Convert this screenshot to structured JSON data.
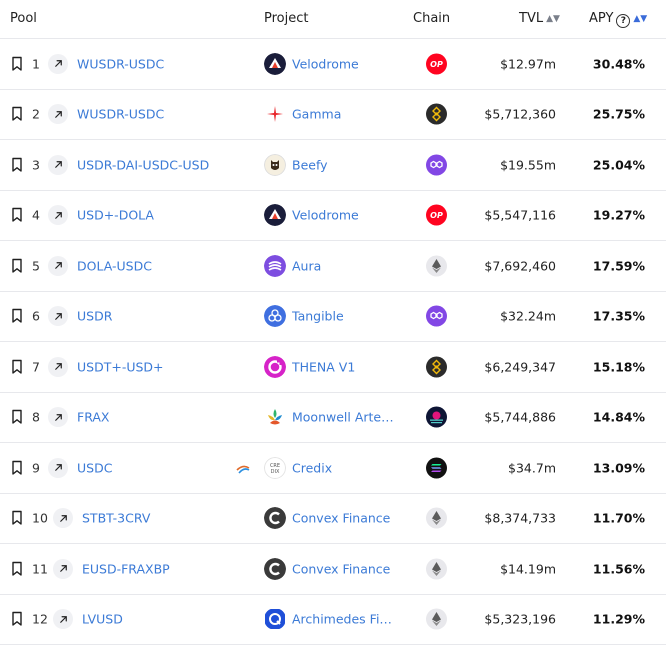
{
  "header": {
    "pool": "Pool",
    "project": "Project",
    "chain": "Chain",
    "tvl": "TVL",
    "apy": "APY",
    "help": "?"
  },
  "rows": [
    {
      "rank": "1",
      "pool": "WUSDR-USDC",
      "project": "Velodrome",
      "project_icon": "velodrome-logo-icon",
      "chain_icon": "optimism-chain-icon",
      "tvl": "$12.97m",
      "apy": "30.48%"
    },
    {
      "rank": "2",
      "pool": "WUSDR-USDC",
      "project": "Gamma",
      "project_icon": "gamma-logo-icon",
      "chain_icon": "bsc-chain-icon",
      "tvl": "$5,712,360",
      "apy": "25.75%"
    },
    {
      "rank": "3",
      "pool": "USDR-DAI-USDC-USD",
      "project": "Beefy",
      "project_icon": "beefy-logo-icon",
      "chain_icon": "polygon-chain-icon",
      "tvl": "$19.55m",
      "apy": "25.04%"
    },
    {
      "rank": "4",
      "pool": "USD+-DOLA",
      "project": "Velodrome",
      "project_icon": "velodrome-logo-icon",
      "chain_icon": "optimism-chain-icon",
      "tvl": "$5,547,116",
      "apy": "19.27%"
    },
    {
      "rank": "5",
      "pool": "DOLA-USDC",
      "project": "Aura",
      "project_icon": "aura-logo-icon",
      "chain_icon": "ethereum-chain-icon",
      "tvl": "$7,692,460",
      "apy": "17.59%"
    },
    {
      "rank": "6",
      "pool": "USDR",
      "project": "Tangible",
      "project_icon": "tangible-logo-icon",
      "chain_icon": "polygon-chain-icon",
      "tvl": "$32.24m",
      "apy": "17.35%"
    },
    {
      "rank": "7",
      "pool": "USDT+-USD+",
      "project": "THENA V1",
      "project_icon": "thena-logo-icon",
      "chain_icon": "bsc-chain-icon",
      "tvl": "$6,249,347",
      "apy": "15.18%"
    },
    {
      "rank": "8",
      "pool": "FRAX",
      "project": "Moonwell Arte…",
      "project_icon": "moonwell-logo-icon",
      "chain_icon": "moonbeam-chain-icon",
      "tvl": "$5,744,886",
      "apy": "14.84%"
    },
    {
      "rank": "9",
      "pool": "USDC",
      "project": "Credix",
      "project_icon": "credix-logo-icon",
      "chain_icon": "solana-chain-icon",
      "tvl": "$34.7m",
      "apy": "13.09%",
      "rwa": true
    },
    {
      "rank": "10",
      "pool": "STBT-3CRV",
      "project": "Convex Finance",
      "project_icon": "convex-logo-icon",
      "chain_icon": "ethereum-chain-icon",
      "tvl": "$8,374,733",
      "apy": "11.70%"
    },
    {
      "rank": "11",
      "pool": "EUSD-FRAXBP",
      "project": "Convex Finance",
      "project_icon": "convex-logo-icon",
      "chain_icon": "ethereum-chain-icon",
      "tvl": "$14.19m",
      "apy": "11.56%"
    },
    {
      "rank": "12",
      "pool": "LVUSD",
      "project": "Archimedes Fi…",
      "project_icon": "archimedes-logo-icon",
      "chain_icon": "ethereum-chain-icon",
      "tvl": "$5,323,196",
      "apy": "11.29%"
    }
  ],
  "colors": {
    "link": "#3b7ad6",
    "border": "#e7e8ec",
    "optimism": "#ff0420",
    "polygon": "#8247e5",
    "bsc": "#2b2b2b"
  }
}
